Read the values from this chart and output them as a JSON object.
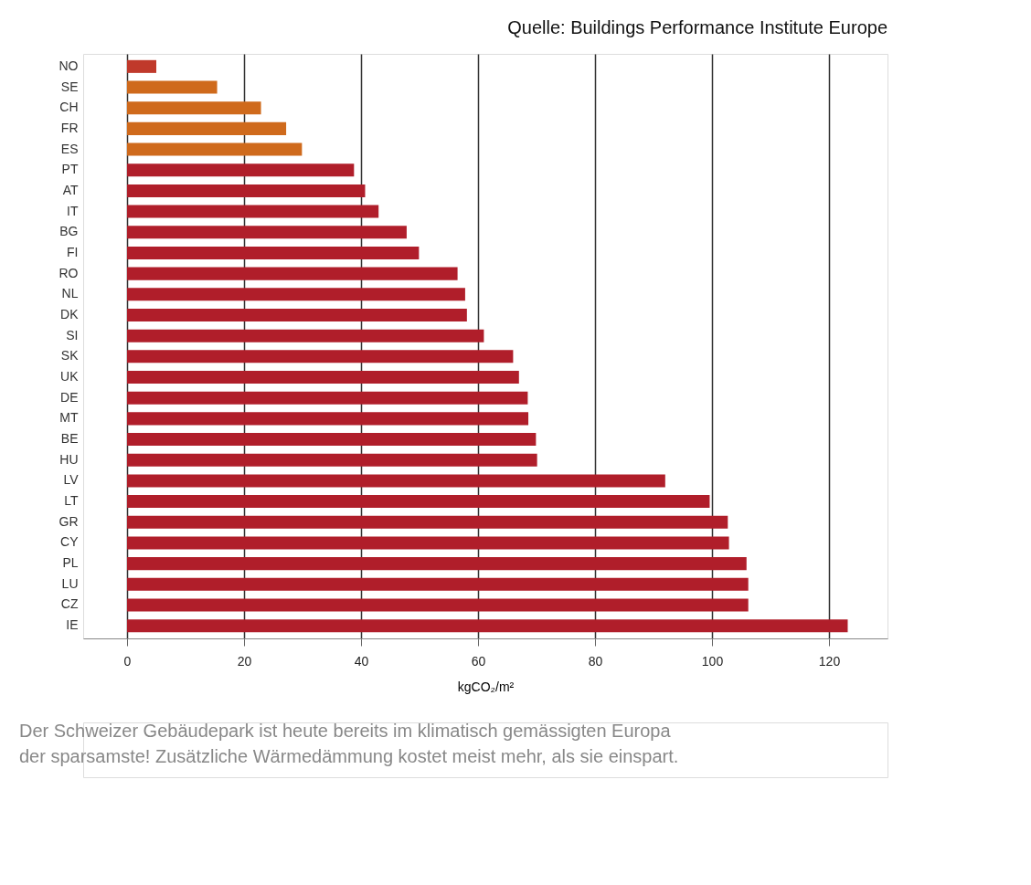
{
  "chart_data": {
    "type": "bar",
    "orientation": "horizontal",
    "categories": [
      "NO",
      "SE",
      "CH",
      "FR",
      "ES",
      "PT",
      "AT",
      "IT",
      "BG",
      "FI",
      "RO",
      "NL",
      "DK",
      "SI",
      "SK",
      "UK",
      "DE",
      "MT",
      "BE",
      "HU",
      "LV",
      "LT",
      "GR",
      "CY",
      "PL",
      "LU",
      "CZ",
      "IE"
    ],
    "values": [
      5,
      15.4,
      22.9,
      27.2,
      29.9,
      38.8,
      40.7,
      43,
      47.8,
      49.9,
      56.5,
      57.8,
      58.1,
      61,
      66,
      67,
      68.5,
      68.6,
      69.9,
      70.1,
      92,
      99.6,
      102.7,
      102.9,
      105.9,
      106.2,
      106.2,
      123.2
    ],
    "colors": [
      "#c0392b",
      "#cf6a1c",
      "#cf6a1c",
      "#cf6a1c",
      "#cf6a1c",
      "#b01e2a",
      "#b01e2a",
      "#b01e2a",
      "#b01e2a",
      "#b01e2a",
      "#b01e2a",
      "#b01e2a",
      "#b01e2a",
      "#b01e2a",
      "#b01e2a",
      "#b01e2a",
      "#b01e2a",
      "#b01e2a",
      "#b01e2a",
      "#b01e2a",
      "#b01e2a",
      "#b01e2a",
      "#b01e2a",
      "#b01e2a",
      "#b01e2a",
      "#b01e2a",
      "#b01e2a",
      "#b01e2a"
    ],
    "xlabel": "kgCO₂/m²",
    "xlim": [
      -7.5,
      130
    ],
    "xticks": [
      0,
      20,
      40,
      60,
      80,
      100,
      120
    ],
    "grid": "x",
    "annotations": [
      "Quelle: Buildings Performance Institute Europe",
      "Der Schweizer Gebäudepark ist heute bereits im klimatisch gemässigten Europa\nder sparsamste! Zusätzliche Wärmedämmung kostet meist mehr, als sie einspart."
    ]
  }
}
